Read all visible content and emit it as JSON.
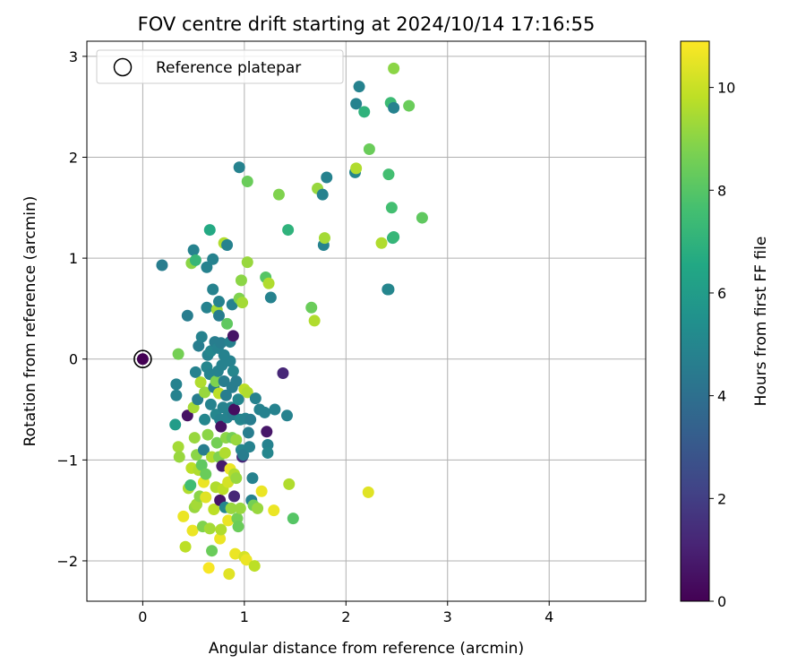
{
  "chart_data": {
    "type": "scatter",
    "title": "FOV centre drift starting at 2024/10/14 17:16:55",
    "xlabel": "Angular distance from reference (arcmin)",
    "ylabel": "Rotation from reference (arcmin)",
    "xlim": [
      -0.55,
      4.95
    ],
    "ylim": [
      -2.4,
      3.15
    ],
    "xticks": [
      0,
      1,
      2,
      3,
      4
    ],
    "xtick_labels": [
      "0",
      "1",
      "2",
      "3",
      "4"
    ],
    "yticks": [
      -2,
      -1,
      0,
      1,
      2,
      3
    ],
    "ytick_labels": [
      "−2",
      "−1",
      "0",
      "1",
      "2",
      "3"
    ],
    "grid": true,
    "legend": {
      "placement": "top-left",
      "entries": [
        "Reference platepar"
      ]
    },
    "reference_point": {
      "x": 0,
      "y": 0,
      "label": "Reference platepar"
    },
    "colorbar": {
      "label": "Hours from first FF file",
      "colormap": "viridis",
      "range": [
        0,
        10.9
      ],
      "ticks": [
        0,
        2,
        4,
        6,
        8,
        10
      ],
      "tick_labels": [
        "0",
        "2",
        "4",
        "6",
        "8",
        "10"
      ]
    },
    "points": [
      {
        "x": 0.0,
        "y": 0.0,
        "c": 0.0
      },
      {
        "x": 0.19,
        "y": 0.93,
        "c": 4.6
      },
      {
        "x": 0.33,
        "y": -0.25,
        "c": 4.8
      },
      {
        "x": 0.33,
        "y": -0.36,
        "c": 4.8
      },
      {
        "x": 0.32,
        "y": -0.65,
        "c": 6.0
      },
      {
        "x": 0.35,
        "y": 0.05,
        "c": 8.6
      },
      {
        "x": 0.35,
        "y": -0.87,
        "c": 9.4
      },
      {
        "x": 0.36,
        "y": -0.97,
        "c": 9.2
      },
      {
        "x": 0.4,
        "y": -1.56,
        "c": 10.6
      },
      {
        "x": 0.42,
        "y": -1.86,
        "c": 9.8
      },
      {
        "x": 0.44,
        "y": 0.43,
        "c": 4.6
      },
      {
        "x": 0.44,
        "y": -0.56,
        "c": 0.5
      },
      {
        "x": 0.45,
        "y": -1.28,
        "c": 9.6
      },
      {
        "x": 0.47,
        "y": -1.25,
        "c": 7.5
      },
      {
        "x": 0.48,
        "y": 0.95,
        "c": 9.0
      },
      {
        "x": 0.48,
        "y": -1.08,
        "c": 9.8
      },
      {
        "x": 0.49,
        "y": -1.7,
        "c": 10.6
      },
      {
        "x": 0.5,
        "y": 1.08,
        "c": 4.8
      },
      {
        "x": 0.5,
        "y": -0.48,
        "c": 9.4
      },
      {
        "x": 0.51,
        "y": -0.78,
        "c": 9.2
      },
      {
        "x": 0.51,
        "y": -1.47,
        "c": 9.2
      },
      {
        "x": 0.52,
        "y": 0.98,
        "c": 7.2
      },
      {
        "x": 0.52,
        "y": -0.13,
        "c": 4.8
      },
      {
        "x": 0.53,
        "y": -0.95,
        "c": 9.0
      },
      {
        "x": 0.53,
        "y": -1.44,
        "c": 9.4
      },
      {
        "x": 0.54,
        "y": -0.4,
        "c": 4.6
      },
      {
        "x": 0.55,
        "y": 0.13,
        "c": 4.6
      },
      {
        "x": 0.55,
        "y": -1.1,
        "c": 9.6
      },
      {
        "x": 0.56,
        "y": -1.36,
        "c": 9.0
      },
      {
        "x": 0.57,
        "y": -0.23,
        "c": 9.6
      },
      {
        "x": 0.58,
        "y": 0.22,
        "c": 4.8
      },
      {
        "x": 0.58,
        "y": -1.05,
        "c": 8.2
      },
      {
        "x": 0.59,
        "y": -1.66,
        "c": 8.8
      },
      {
        "x": 0.6,
        "y": -0.9,
        "c": 4.6
      },
      {
        "x": 0.6,
        "y": -1.22,
        "c": 10.6
      },
      {
        "x": 0.61,
        "y": -0.6,
        "c": 5.0
      },
      {
        "x": 0.61,
        "y": -0.33,
        "c": 9.2
      },
      {
        "x": 0.62,
        "y": -1.14,
        "c": 8.4
      },
      {
        "x": 0.62,
        "y": -1.37,
        "c": 10.4
      },
      {
        "x": 0.63,
        "y": 0.91,
        "c": 4.8
      },
      {
        "x": 0.63,
        "y": 0.51,
        "c": 4.8
      },
      {
        "x": 0.63,
        "y": -0.08,
        "c": 5.0
      },
      {
        "x": 0.64,
        "y": 0.04,
        "c": 4.8
      },
      {
        "x": 0.64,
        "y": -0.75,
        "c": 9.0
      },
      {
        "x": 0.65,
        "y": -2.07,
        "c": 10.8
      },
      {
        "x": 0.66,
        "y": 1.28,
        "c": 6.6
      },
      {
        "x": 0.66,
        "y": -0.15,
        "c": 4.8
      },
      {
        "x": 0.66,
        "y": -1.68,
        "c": 9.4
      },
      {
        "x": 0.67,
        "y": 0.08,
        "c": 5.0
      },
      {
        "x": 0.67,
        "y": -0.45,
        "c": 4.8
      },
      {
        "x": 0.68,
        "y": -0.97,
        "c": 9.6
      },
      {
        "x": 0.68,
        "y": -1.9,
        "c": 8.4
      },
      {
        "x": 0.69,
        "y": 0.99,
        "c": 4.8
      },
      {
        "x": 0.69,
        "y": 0.69,
        "c": 4.8
      },
      {
        "x": 0.7,
        "y": -0.28,
        "c": 4.6
      },
      {
        "x": 0.7,
        "y": -1.49,
        "c": 9.8
      },
      {
        "x": 0.71,
        "y": 0.17,
        "c": 4.6
      },
      {
        "x": 0.72,
        "y": -0.22,
        "c": 8.8
      },
      {
        "x": 0.72,
        "y": -0.55,
        "c": 5.0
      },
      {
        "x": 0.72,
        "y": -1.27,
        "c": 9.6
      },
      {
        "x": 0.73,
        "y": 0.49,
        "c": 9.4
      },
      {
        "x": 0.73,
        "y": -0.83,
        "c": 8.6
      },
      {
        "x": 0.74,
        "y": 0.11,
        "c": 4.8
      },
      {
        "x": 0.74,
        "y": -0.12,
        "c": 4.8
      },
      {
        "x": 0.75,
        "y": 0.57,
        "c": 4.8
      },
      {
        "x": 0.75,
        "y": 0.43,
        "c": 4.6
      },
      {
        "x": 0.75,
        "y": -0.34,
        "c": 9.8
      },
      {
        "x": 0.75,
        "y": -0.97,
        "c": 8.8
      },
      {
        "x": 0.76,
        "y": -0.6,
        "c": 4.8
      },
      {
        "x": 0.76,
        "y": -1.4,
        "c": 0.6
      },
      {
        "x": 0.76,
        "y": -1.78,
        "c": 10.6
      },
      {
        "x": 0.77,
        "y": 0.16,
        "c": 4.6
      },
      {
        "x": 0.77,
        "y": -0.67,
        "c": 0.5
      },
      {
        "x": 0.77,
        "y": -1.69,
        "c": 9.6
      },
      {
        "x": 0.78,
        "y": -0.06,
        "c": 4.8
      },
      {
        "x": 0.78,
        "y": -1.06,
        "c": 0.8
      },
      {
        "x": 0.79,
        "y": -0.48,
        "c": 4.8
      },
      {
        "x": 0.79,
        "y": -1.29,
        "c": 9.8
      },
      {
        "x": 0.8,
        "y": 1.15,
        "c": 9.6
      },
      {
        "x": 0.8,
        "y": 0.04,
        "c": 4.8
      },
      {
        "x": 0.8,
        "y": -0.22,
        "c": 4.6
      },
      {
        "x": 0.81,
        "y": -0.93,
        "c": 9.6
      },
      {
        "x": 0.81,
        "y": -1.47,
        "c": 5.0
      },
      {
        "x": 0.82,
        "y": -0.36,
        "c": 4.6
      },
      {
        "x": 0.82,
        "y": -0.78,
        "c": 9.0
      },
      {
        "x": 0.83,
        "y": 1.13,
        "c": 4.8
      },
      {
        "x": 0.83,
        "y": 0.35,
        "c": 8.2
      },
      {
        "x": 0.83,
        "y": -0.58,
        "c": 4.8
      },
      {
        "x": 0.84,
        "y": -1.22,
        "c": 10.2
      },
      {
        "x": 0.84,
        "y": -1.6,
        "c": 10.6
      },
      {
        "x": 0.85,
        "y": -2.13,
        "c": 10.4
      },
      {
        "x": 0.86,
        "y": 0.17,
        "c": 4.8
      },
      {
        "x": 0.86,
        "y": -0.02,
        "c": 4.8
      },
      {
        "x": 0.86,
        "y": -1.09,
        "c": 10.6
      },
      {
        "x": 0.87,
        "y": -0.48,
        "c": 4.8
      },
      {
        "x": 0.87,
        "y": -1.48,
        "c": 9.2
      },
      {
        "x": 0.88,
        "y": 0.54,
        "c": 4.8
      },
      {
        "x": 0.88,
        "y": -0.28,
        "c": 4.6
      },
      {
        "x": 0.88,
        "y": -0.78,
        "c": 8.6
      },
      {
        "x": 0.89,
        "y": 0.23,
        "c": 0.6
      },
      {
        "x": 0.89,
        "y": -0.12,
        "c": 5.0
      },
      {
        "x": 0.89,
        "y": -0.55,
        "c": 4.6
      },
      {
        "x": 0.9,
        "y": -0.5,
        "c": 0.4
      },
      {
        "x": 0.9,
        "y": -1.14,
        "c": 9.6
      },
      {
        "x": 0.9,
        "y": -1.36,
        "c": 1.2
      },
      {
        "x": 0.91,
        "y": -1.93,
        "c": 10.6
      },
      {
        "x": 0.92,
        "y": -0.22,
        "c": 4.6
      },
      {
        "x": 0.92,
        "y": -0.8,
        "c": 9.2
      },
      {
        "x": 0.92,
        "y": -1.18,
        "c": 9.2
      },
      {
        "x": 0.93,
        "y": -1.58,
        "c": 8.6
      },
      {
        "x": 0.94,
        "y": -0.4,
        "c": 5.0
      },
      {
        "x": 0.94,
        "y": -1.66,
        "c": 8.4
      },
      {
        "x": 0.95,
        "y": 1.9,
        "c": 4.8
      },
      {
        "x": 0.95,
        "y": 0.6,
        "c": 8.8
      },
      {
        "x": 0.96,
        "y": -0.6,
        "c": 5.0
      },
      {
        "x": 0.96,
        "y": -1.48,
        "c": 9.2
      },
      {
        "x": 0.97,
        "y": 0.78,
        "c": 9.0
      },
      {
        "x": 0.97,
        "y": -0.9,
        "c": 5.0
      },
      {
        "x": 0.98,
        "y": 0.56,
        "c": 9.4
      },
      {
        "x": 0.98,
        "y": -0.97,
        "c": 1.2
      },
      {
        "x": 0.99,
        "y": -0.95,
        "c": 4.6
      },
      {
        "x": 1.0,
        "y": -0.3,
        "c": 9.8
      },
      {
        "x": 1.0,
        "y": -1.96,
        "c": 10.2
      },
      {
        "x": 1.01,
        "y": -0.59,
        "c": 4.8
      },
      {
        "x": 1.02,
        "y": -1.99,
        "c": 10.6
      },
      {
        "x": 1.03,
        "y": 1.76,
        "c": 8.4
      },
      {
        "x": 1.03,
        "y": 0.96,
        "c": 9.2
      },
      {
        "x": 1.03,
        "y": -0.33,
        "c": 9.6
      },
      {
        "x": 1.04,
        "y": -0.73,
        "c": 4.6
      },
      {
        "x": 1.05,
        "y": -0.87,
        "c": 4.8
      },
      {
        "x": 1.06,
        "y": -0.6,
        "c": 4.6
      },
      {
        "x": 1.07,
        "y": -1.4,
        "c": 4.8
      },
      {
        "x": 1.08,
        "y": -1.18,
        "c": 4.8
      },
      {
        "x": 1.09,
        "y": -1.45,
        "c": 8.6
      },
      {
        "x": 1.1,
        "y": -2.05,
        "c": 9.8
      },
      {
        "x": 1.11,
        "y": -0.39,
        "c": 4.8
      },
      {
        "x": 1.13,
        "y": -1.48,
        "c": 9.2
      },
      {
        "x": 1.15,
        "y": -0.5,
        "c": 4.8
      },
      {
        "x": 1.17,
        "y": -1.31,
        "c": 10.6
      },
      {
        "x": 1.2,
        "y": -0.53,
        "c": 4.8
      },
      {
        "x": 1.21,
        "y": 0.81,
        "c": 8.0
      },
      {
        "x": 1.22,
        "y": -0.72,
        "c": 0.7
      },
      {
        "x": 1.23,
        "y": -0.85,
        "c": 4.8
      },
      {
        "x": 1.23,
        "y": -0.93,
        "c": 5.0
      },
      {
        "x": 1.24,
        "y": 0.75,
        "c": 9.6
      },
      {
        "x": 1.26,
        "y": 0.61,
        "c": 4.8
      },
      {
        "x": 1.29,
        "y": -1.5,
        "c": 10.6
      },
      {
        "x": 1.3,
        "y": -0.5,
        "c": 4.8
      },
      {
        "x": 1.34,
        "y": 1.63,
        "c": 8.8
      },
      {
        "x": 1.38,
        "y": -0.14,
        "c": 1.2
      },
      {
        "x": 1.42,
        "y": -0.56,
        "c": 4.8
      },
      {
        "x": 1.43,
        "y": 1.28,
        "c": 7.0
      },
      {
        "x": 1.44,
        "y": -1.24,
        "c": 9.6
      },
      {
        "x": 1.48,
        "y": -1.58,
        "c": 8.0
      },
      {
        "x": 1.66,
        "y": 0.51,
        "c": 8.4
      },
      {
        "x": 1.69,
        "y": 0.38,
        "c": 9.6
      },
      {
        "x": 1.72,
        "y": 1.69,
        "c": 9.2
      },
      {
        "x": 1.77,
        "y": 1.63,
        "c": 4.8
      },
      {
        "x": 1.78,
        "y": 1.13,
        "c": 4.8
      },
      {
        "x": 1.79,
        "y": 1.2,
        "c": 9.4
      },
      {
        "x": 1.81,
        "y": 1.8,
        "c": 4.8
      },
      {
        "x": 2.09,
        "y": 1.85,
        "c": 5.0
      },
      {
        "x": 2.1,
        "y": 1.89,
        "c": 9.6
      },
      {
        "x": 2.1,
        "y": 2.53,
        "c": 4.8
      },
      {
        "x": 2.13,
        "y": 2.7,
        "c": 4.8
      },
      {
        "x": 2.18,
        "y": 2.45,
        "c": 7.0
      },
      {
        "x": 2.22,
        "y": -1.32,
        "c": 10.4
      },
      {
        "x": 2.23,
        "y": 2.08,
        "c": 8.4
      },
      {
        "x": 2.35,
        "y": 1.15,
        "c": 9.6
      },
      {
        "x": 2.41,
        "y": 0.69,
        "c": 4.8
      },
      {
        "x": 2.42,
        "y": 0.69,
        "c": 5.0
      },
      {
        "x": 2.42,
        "y": 1.83,
        "c": 7.6
      },
      {
        "x": 2.44,
        "y": 2.54,
        "c": 7.4
      },
      {
        "x": 2.45,
        "y": 1.5,
        "c": 7.6
      },
      {
        "x": 2.46,
        "y": 1.2,
        "c": 7.0
      },
      {
        "x": 2.47,
        "y": 1.21,
        "c": 7.2
      },
      {
        "x": 2.47,
        "y": 2.49,
        "c": 4.8
      },
      {
        "x": 2.47,
        "y": 2.88,
        "c": 9.0
      },
      {
        "x": 2.62,
        "y": 2.51,
        "c": 8.4
      },
      {
        "x": 2.75,
        "y": 1.4,
        "c": 8.2
      }
    ]
  }
}
